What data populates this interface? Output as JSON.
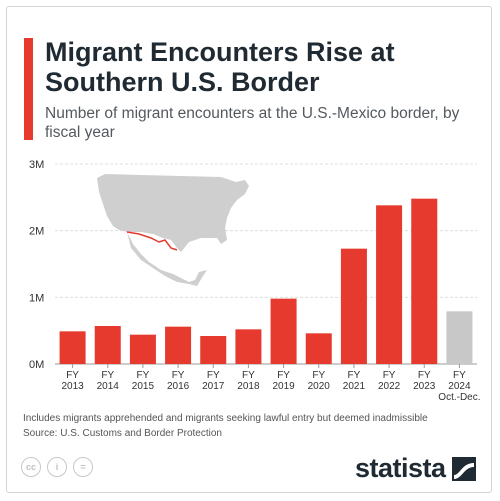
{
  "title": "Migrant Encounters Rise at Southern U.S. Border",
  "subtitle": "Number of migrant encounters at the U.S.-Mexico border, by fiscal year",
  "colors": {
    "accent": "#e63a2e",
    "bar": "#e63a2e",
    "bar_partial": "#c8c8c8",
    "grid": "#d9d9d9",
    "map": "#cfcfcf",
    "border_line": "#e63a2e"
  },
  "chart_data": {
    "type": "bar",
    "title": "Migrant Encounters Rise at Southern U.S. Border",
    "subtitle": "Number of migrant encounters at the U.S.-Mexico border, by fiscal year",
    "xlabel": "",
    "ylabel": "",
    "ylim": [
      0,
      3000000
    ],
    "yticks": [
      {
        "value": 0,
        "label": "0M"
      },
      {
        "value": 1000000,
        "label": "1M"
      },
      {
        "value": 2000000,
        "label": "2M"
      },
      {
        "value": 3000000,
        "label": "3M"
      }
    ],
    "grid": true,
    "categories": [
      [
        "FY",
        "2013"
      ],
      [
        "FY",
        "2014"
      ],
      [
        "FY",
        "2015"
      ],
      [
        "FY",
        "2016"
      ],
      [
        "FY",
        "2017"
      ],
      [
        "FY",
        "2018"
      ],
      [
        "FY",
        "2019"
      ],
      [
        "FY",
        "2020"
      ],
      [
        "FY",
        "2021"
      ],
      [
        "FY",
        "2022"
      ],
      [
        "FY",
        "2023"
      ],
      [
        "FY",
        "2024",
        "Oct.-Dec."
      ]
    ],
    "values": [
      490000,
      570000,
      440000,
      560000,
      420000,
      520000,
      980000,
      460000,
      1730000,
      2380000,
      2480000,
      790000
    ],
    "highlight": [
      false,
      false,
      false,
      false,
      false,
      false,
      false,
      false,
      false,
      false,
      false,
      true
    ]
  },
  "notes": [
    "Includes migrants apprehended and migrants seeking lawful entry but deemed inadmissible",
    "Source: U.S. Customs and Border Protection"
  ],
  "icons": [
    "cc-license-icon",
    "person-attribution-icon",
    "equals-noderivs-icon"
  ],
  "license_labels": [
    "cc",
    "i",
    "="
  ],
  "brand": {
    "name": "statista"
  }
}
